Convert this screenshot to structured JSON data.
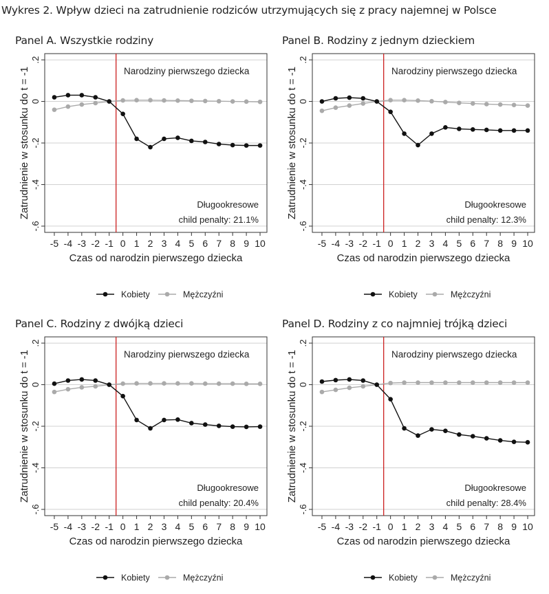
{
  "figure_title": "Wykres 2. Wpływ dzieci na zatrudnienie rodziców utrzymujących się z pracy najemnej w Polsce",
  "colors": {
    "women": "#111111",
    "men": "#aaaaaa",
    "event_line": "#cc1f1f",
    "grid": "#d0d0d0",
    "frame": "#333333"
  },
  "chart_data": [
    {
      "id": "pA",
      "type": "line",
      "panel_title": "Panel A. Wszystkie rodziny",
      "x": [
        -5,
        -4,
        -3,
        -2,
        -1,
        0,
        1,
        2,
        3,
        4,
        5,
        6,
        7,
        8,
        9,
        10
      ],
      "xlabel": "Czas od narodzin pierwszego dziecka",
      "ylabel": "Zatrudnienie w stosunku do t = -1",
      "ylim": [
        -0.63,
        0.23
      ],
      "yticks": [
        -0.6,
        -0.4,
        -0.2,
        0,
        0.2
      ],
      "ytick_labels": [
        "-.6",
        "-.4",
        "-.2",
        "0",
        ".2"
      ],
      "event_label": "Narodziny pierwszego dziecka",
      "penalty_label": "Długookresowe",
      "penalty_value": "child penalty: 21.1%",
      "series": [
        {
          "name": "Kobiety",
          "values": [
            0.02,
            0.03,
            0.03,
            0.02,
            0,
            -0.06,
            -0.18,
            -0.22,
            -0.18,
            -0.175,
            -0.19,
            -0.195,
            -0.205,
            -0.21,
            -0.212,
            -0.212
          ]
        },
        {
          "name": "Mężczyźni",
          "values": [
            -0.04,
            -0.025,
            -0.015,
            -0.008,
            0,
            0.005,
            0.006,
            0.006,
            0.005,
            0.004,
            0.003,
            0.002,
            0.001,
            0,
            -0.001,
            -0.002
          ]
        }
      ]
    },
    {
      "id": "pB",
      "type": "line",
      "panel_title": "Panel B. Rodziny z jednym dzieckiem",
      "x": [
        -5,
        -4,
        -3,
        -2,
        -1,
        0,
        1,
        2,
        3,
        4,
        5,
        6,
        7,
        8,
        9,
        10
      ],
      "xlabel": "Czas od narodzin pierwszego dziecka",
      "ylabel": "Zatrudnienie w stosunku do t = -1",
      "ylim": [
        -0.63,
        0.23
      ],
      "yticks": [
        -0.6,
        -0.4,
        -0.2,
        0,
        0.2
      ],
      "ytick_labels": [
        "-.6",
        "-.4",
        "-.2",
        "0",
        ".2"
      ],
      "event_label": "Narodziny pierwszego dziecka",
      "penalty_label": "Długookresowe",
      "penalty_value": "child penalty: 12.3%",
      "series": [
        {
          "name": "Kobiety",
          "values": [
            0,
            0.015,
            0.018,
            0.015,
            0,
            -0.05,
            -0.155,
            -0.21,
            -0.155,
            -0.125,
            -0.132,
            -0.135,
            -0.137,
            -0.14,
            -0.14,
            -0.14
          ]
        },
        {
          "name": "Mężczyźni",
          "values": [
            -0.045,
            -0.03,
            -0.02,
            -0.01,
            0,
            0.006,
            0.006,
            0.004,
            0.001,
            -0.003,
            -0.007,
            -0.01,
            -0.013,
            -0.015,
            -0.017,
            -0.02
          ]
        }
      ]
    },
    {
      "id": "pC",
      "type": "line",
      "panel_title": "Panel C. Rodziny z dwójką dzieci",
      "x": [
        -5,
        -4,
        -3,
        -2,
        -1,
        0,
        1,
        2,
        3,
        4,
        5,
        6,
        7,
        8,
        9,
        10
      ],
      "xlabel": "Czas od narodzin pierwszego dziecka",
      "ylabel": "Zatrudnienie w stosunku do t = -1",
      "ylim": [
        -0.63,
        0.23
      ],
      "yticks": [
        -0.6,
        -0.4,
        -0.2,
        0,
        0.2
      ],
      "ytick_labels": [
        "-.6",
        "-.4",
        "-.2",
        "0",
        ".2"
      ],
      "event_label": "Narodziny pierwszego dziecka",
      "penalty_label": "Długookresowe",
      "penalty_value": "child penalty: 20.4%",
      "series": [
        {
          "name": "Kobiety",
          "values": [
            0.005,
            0.02,
            0.025,
            0.02,
            0,
            -0.055,
            -0.17,
            -0.21,
            -0.17,
            -0.168,
            -0.185,
            -0.192,
            -0.198,
            -0.202,
            -0.203,
            -0.202
          ]
        },
        {
          "name": "Mężczyźni",
          "values": [
            -0.035,
            -0.022,
            -0.013,
            -0.008,
            0,
            0.005,
            0.006,
            0.006,
            0.006,
            0.006,
            0.006,
            0.005,
            0.005,
            0.005,
            0.004,
            0.004
          ]
        }
      ]
    },
    {
      "id": "pD",
      "type": "line",
      "panel_title": "Panel D. Rodziny z co najmniej trójką dzieci",
      "x": [
        -5,
        -4,
        -3,
        -2,
        -1,
        0,
        1,
        2,
        3,
        4,
        5,
        6,
        7,
        8,
        9,
        10
      ],
      "xlabel": "Czas od narodzin pierwszego dziecka",
      "ylabel": "Zatrudnienie w stosunku do t = -1",
      "ylim": [
        -0.63,
        0.23
      ],
      "yticks": [
        -0.6,
        -0.4,
        -0.2,
        0,
        0.2
      ],
      "ytick_labels": [
        "-.6",
        "-.4",
        "-.2",
        "0",
        ".2"
      ],
      "event_label": "Narodziny pierwszego dziecka",
      "penalty_label": "Długookresowe",
      "penalty_value": "child penalty: 28.4%",
      "series": [
        {
          "name": "Kobiety",
          "values": [
            0.015,
            0.022,
            0.025,
            0.02,
            0,
            -0.07,
            -0.21,
            -0.245,
            -0.215,
            -0.222,
            -0.24,
            -0.248,
            -0.258,
            -0.268,
            -0.275,
            -0.277
          ]
        },
        {
          "name": "Mężczyźni",
          "values": [
            -0.035,
            -0.025,
            -0.015,
            -0.008,
            0,
            0.008,
            0.01,
            0.01,
            0.01,
            0.01,
            0.01,
            0.01,
            0.01,
            0.01,
            0.01,
            0.01
          ]
        }
      ]
    }
  ]
}
